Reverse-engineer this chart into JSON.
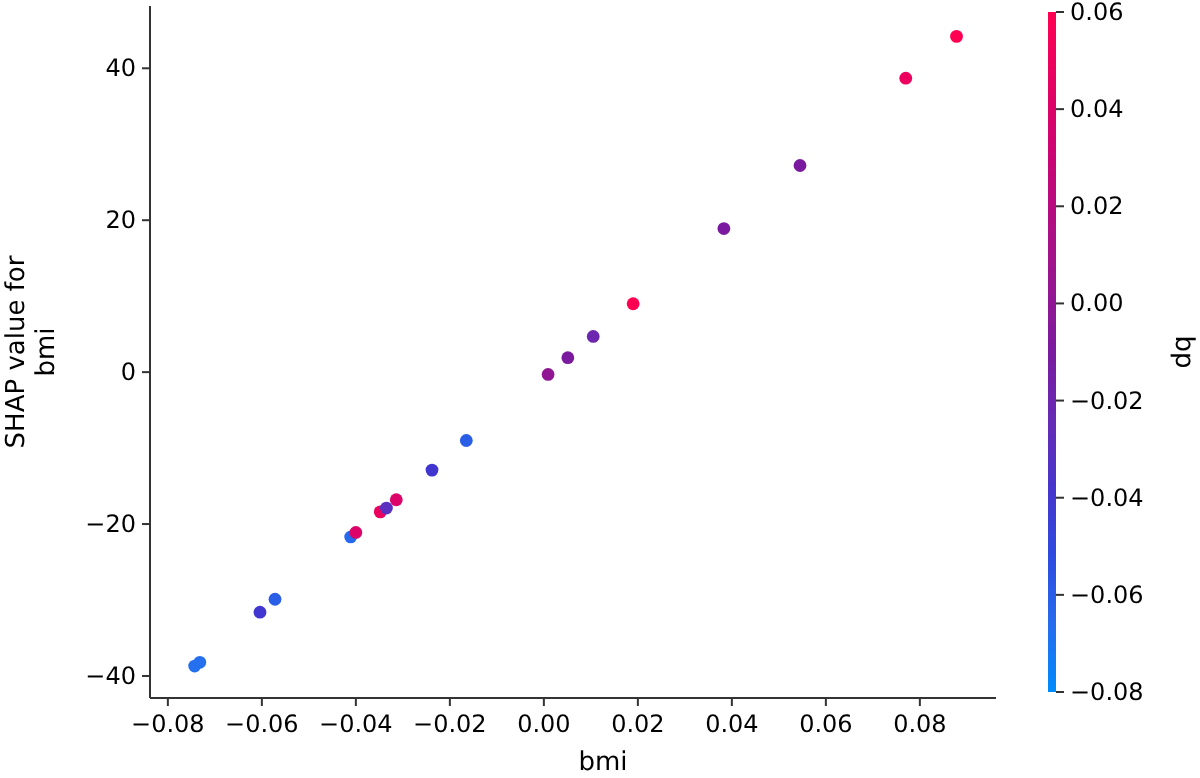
{
  "chart_data": {
    "type": "scatter",
    "xlabel": "bmi",
    "ylabel": "SHAP value for\nbmi",
    "clabel": "bp",
    "x": [
      -0.0743,
      -0.0732,
      -0.0604,
      -0.0572,
      -0.0411,
      -0.04,
      -0.0348,
      -0.0335,
      -0.0314,
      -0.0238,
      -0.0165,
      0.0009,
      0.0051,
      0.0105,
      0.019,
      0.0383,
      0.0545,
      0.077,
      0.0878
    ],
    "values": [
      -38.7,
      -38.2,
      -31.6,
      -29.9,
      -21.7,
      -21.1,
      -18.4,
      -17.9,
      -16.8,
      -12.9,
      -9.0,
      -0.3,
      1.9,
      4.7,
      9.0,
      18.9,
      27.2,
      38.7,
      44.2
    ],
    "cvalues": [
      -0.068,
      -0.068,
      -0.04,
      -0.06,
      -0.065,
      0.04,
      0.05,
      -0.03,
      0.04,
      -0.04,
      -0.06,
      0.0,
      -0.01,
      -0.02,
      0.06,
      -0.01,
      -0.01,
      0.05,
      0.06
    ],
    "xlim": [
      -0.0838,
      0.0962
    ],
    "ylim": [
      -42.9,
      48.2
    ],
    "xticks": [
      {
        "value": -0.08,
        "label": "−0.08"
      },
      {
        "value": -0.06,
        "label": "−0.06"
      },
      {
        "value": -0.04,
        "label": "−0.04"
      },
      {
        "value": -0.02,
        "label": "−0.02"
      },
      {
        "value": 0,
        "label": "0.00"
      },
      {
        "value": 0.02,
        "label": "0.02"
      },
      {
        "value": 0.04,
        "label": "0.04"
      },
      {
        "value": 0.06,
        "label": "0.06"
      },
      {
        "value": 0.08,
        "label": "0.08"
      }
    ],
    "yticks": [
      {
        "value": -40,
        "label": "−40"
      },
      {
        "value": -20,
        "label": "−20"
      },
      0,
      20,
      40
    ],
    "clim": [
      -0.08,
      0.06
    ],
    "cticks": [
      {
        "value": -0.08,
        "label": "−0.08"
      },
      {
        "value": -0.06,
        "label": "−0.06"
      },
      {
        "value": -0.04,
        "label": "−0.04"
      },
      {
        "value": -0.02,
        "label": "−0.02"
      },
      {
        "value": 0,
        "label": "0.00"
      },
      {
        "value": 0.02,
        "label": "0.02"
      },
      {
        "value": 0.04,
        "label": "0.04"
      },
      {
        "value": 0.06,
        "label": "0.06"
      }
    ],
    "marker": "circle",
    "grid": false
  }
}
